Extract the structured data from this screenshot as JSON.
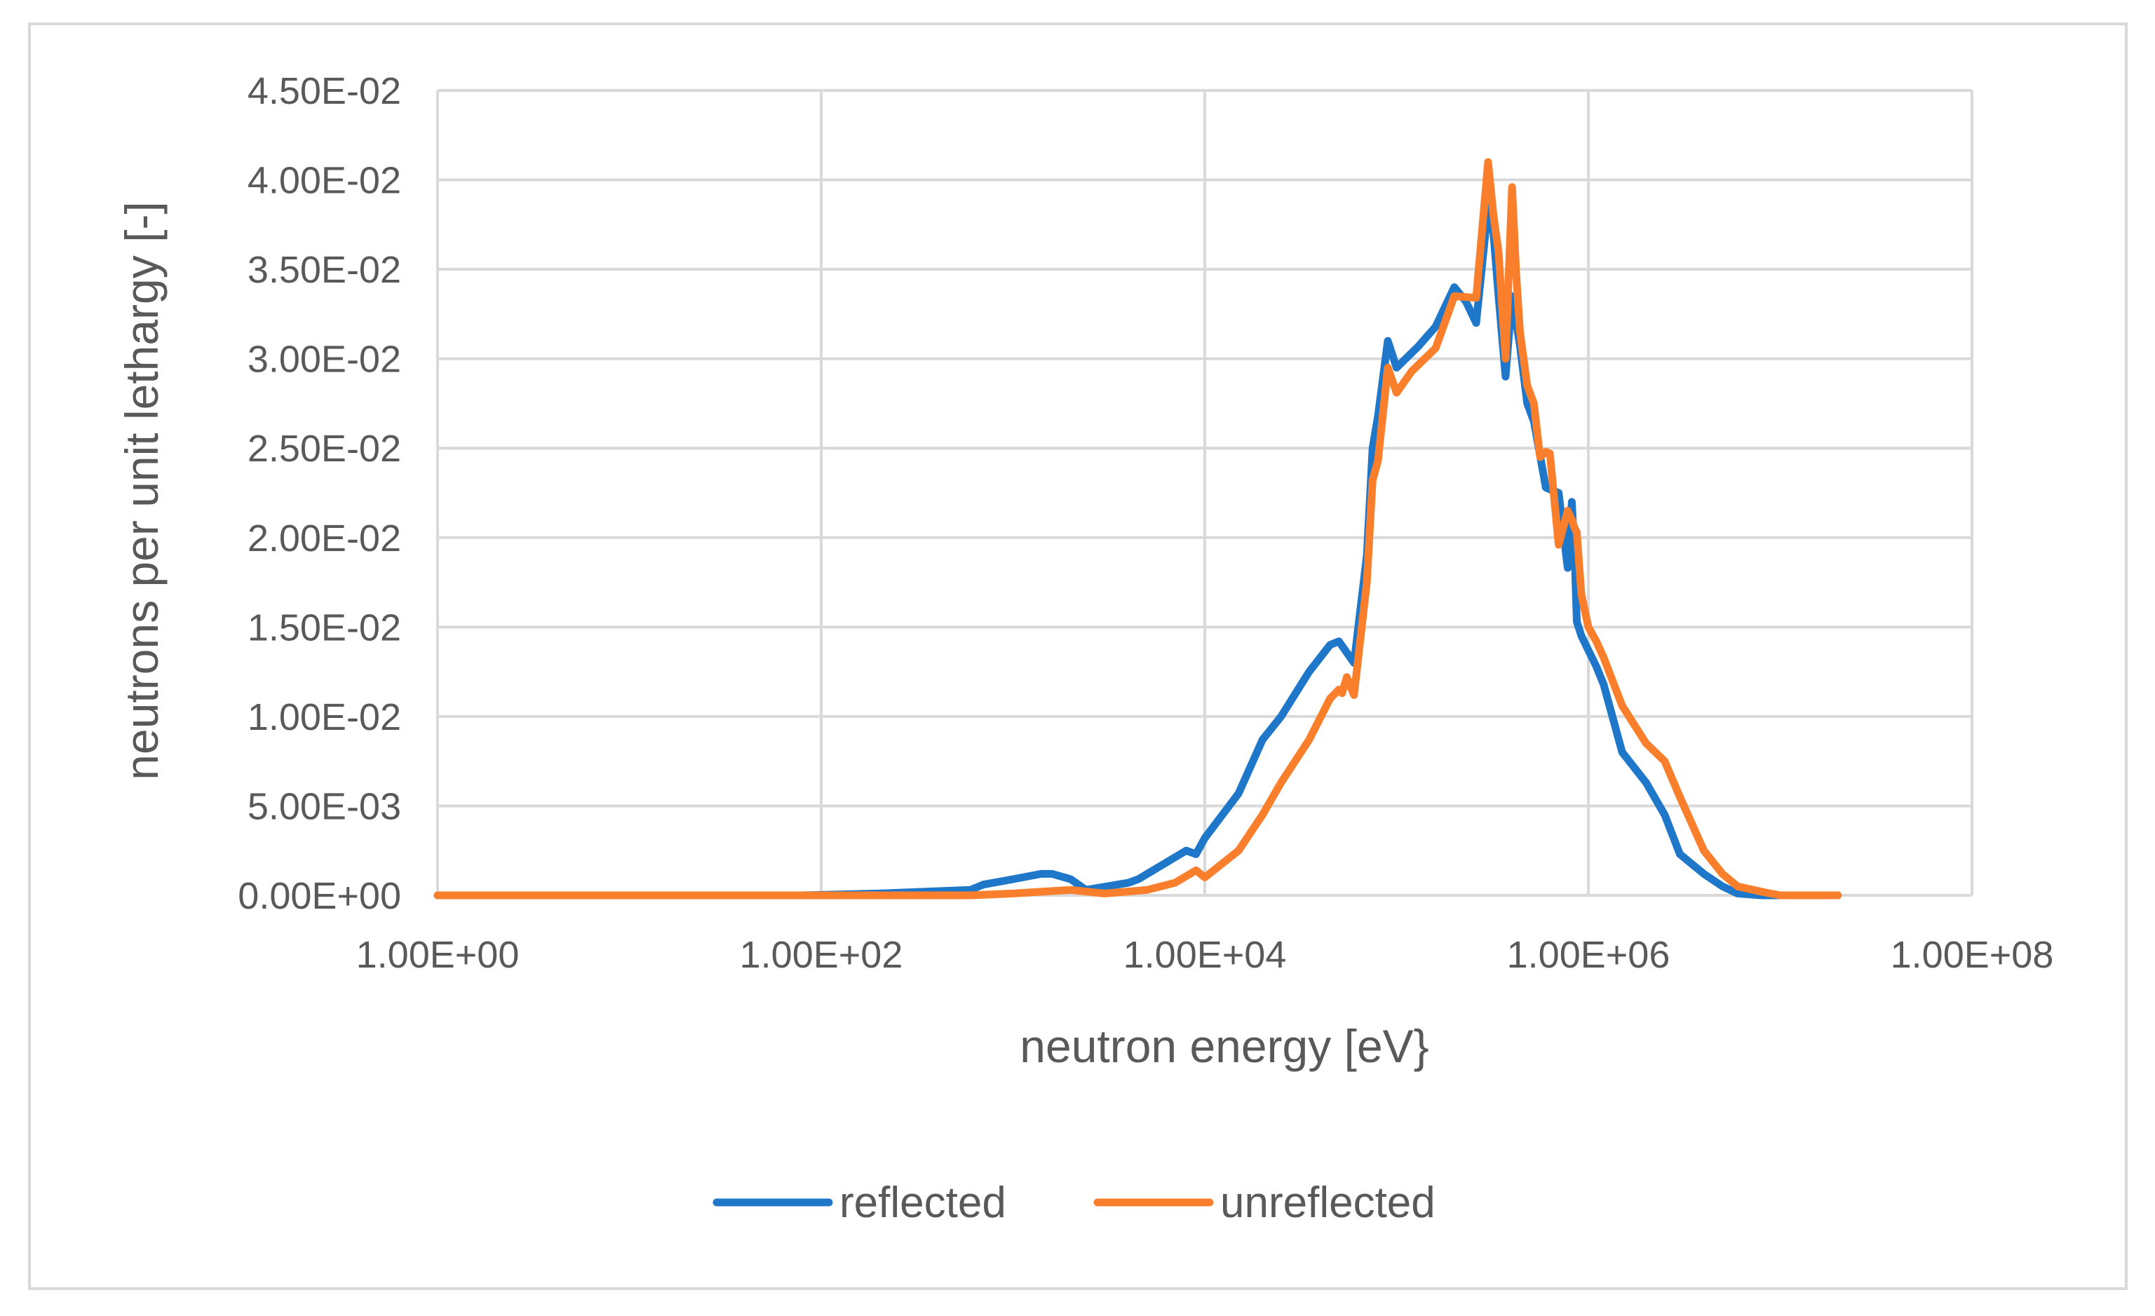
{
  "chart_data": {
    "type": "line",
    "title": "",
    "xlabel": "neutron energy [eV}",
    "ylabel": "neutrons per unit lethargy [-]",
    "x_scale": "log",
    "xlim": [
      1,
      100000000
    ],
    "ylim": [
      0,
      0.045
    ],
    "x_tick_values": [
      1,
      100,
      10000,
      1000000,
      100000000
    ],
    "x_tick_labels": [
      "1.00E+00",
      "1.00E+02",
      "1.00E+04",
      "1.00E+06",
      "1.00E+08"
    ],
    "y_tick_values": [
      0,
      0.005,
      0.01,
      0.015,
      0.02,
      0.025,
      0.03,
      0.035,
      0.04,
      0.045
    ],
    "y_tick_labels": [
      "0.00E+00",
      "5.00E-03",
      "1.00E-02",
      "1.50E-02",
      "2.00E-02",
      "2.50E-02",
      "3.00E-02",
      "3.50E-02",
      "4.00E-02",
      "4.50E-02"
    ],
    "grid": true,
    "legend_position": "bottom",
    "series": [
      {
        "name": "reflected",
        "color": "#1F77C9",
        "x": [
          1,
          10,
          80,
          200,
          600,
          700,
          1000,
          1400,
          1600,
          2000,
          2400,
          4000,
          4500,
          8000,
          9000,
          10000,
          15000,
          20000,
          25000,
          35000,
          45000,
          50000,
          60000,
          70000,
          75000,
          80000,
          90000,
          100000,
          130000,
          160000,
          200000,
          230000,
          260000,
          300000,
          320000,
          340000,
          370000,
          400000,
          440000,
          480000,
          520000,
          600000,
          630000,
          700000,
          780000,
          820000,
          850000,
          870000,
          920000,
          1000000,
          1100000,
          1200000,
          1500000,
          2000000,
          2500000,
          3000000,
          4000000,
          5000000,
          6000000,
          8000000,
          10000000,
          14000000,
          20000000
        ],
        "y": [
          0,
          0,
          0,
          0.0001,
          0.0003,
          0.0006,
          0.0009,
          0.0012,
          0.0012,
          0.0009,
          0.0003,
          0.0007,
          0.0009,
          0.0025,
          0.0023,
          0.0032,
          0.0057,
          0.0087,
          0.01,
          0.0125,
          0.014,
          0.0142,
          0.013,
          0.019,
          0.025,
          0.0268,
          0.031,
          0.0295,
          0.0307,
          0.0318,
          0.034,
          0.0332,
          0.032,
          0.0385,
          0.037,
          0.0335,
          0.029,
          0.0335,
          0.0307,
          0.0275,
          0.0265,
          0.0228,
          0.0227,
          0.0225,
          0.0183,
          0.022,
          0.0187,
          0.0153,
          0.0145,
          0.0137,
          0.0128,
          0.0118,
          0.008,
          0.0063,
          0.0045,
          0.0023,
          0.0012,
          0.0005,
          0.0001,
          0,
          0,
          0,
          0
        ]
      },
      {
        "name": "unreflected",
        "color": "#F97F2C",
        "x": [
          1,
          10,
          100,
          600,
          1000,
          1400,
          2000,
          3000,
          5000,
          7000,
          9000,
          10000,
          15000,
          20000,
          25000,
          35000,
          45000,
          50000,
          52000,
          55000,
          60000,
          70000,
          75000,
          80000,
          90000,
          100000,
          120000,
          160000,
          200000,
          260000,
          300000,
          320000,
          340000,
          370000,
          400000,
          420000,
          440000,
          480000,
          520000,
          560000,
          600000,
          630000,
          700000,
          780000,
          820000,
          850000,
          870000,
          920000,
          1000000,
          1100000,
          1200000,
          1500000,
          2000000,
          2500000,
          3000000,
          4000000,
          5000000,
          6000000,
          8000000,
          10000000,
          14000000,
          20000000
        ],
        "y": [
          0,
          0,
          0,
          0,
          0.0001,
          0.0002,
          0.0003,
          0.0001,
          0.0003,
          0.0007,
          0.0014,
          0.001,
          0.0025,
          0.0045,
          0.0063,
          0.0087,
          0.011,
          0.0115,
          0.0113,
          0.0122,
          0.0112,
          0.0175,
          0.0232,
          0.0243,
          0.0295,
          0.0281,
          0.0293,
          0.0306,
          0.0335,
          0.0334,
          0.041,
          0.038,
          0.036,
          0.03,
          0.0396,
          0.0348,
          0.0315,
          0.0285,
          0.0275,
          0.0245,
          0.0248,
          0.0247,
          0.0196,
          0.0215,
          0.021,
          0.0205,
          0.0203,
          0.0168,
          0.015,
          0.0142,
          0.0133,
          0.0106,
          0.0085,
          0.0075,
          0.0055,
          0.0025,
          0.0012,
          0.0005,
          0.0002,
          0,
          0,
          0
        ]
      }
    ]
  }
}
